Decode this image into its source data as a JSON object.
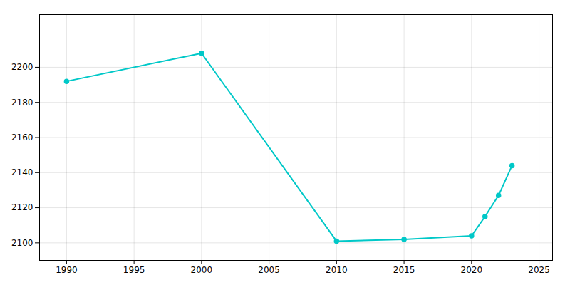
{
  "chart_data": {
    "type": "line",
    "x": [
      1990,
      2000,
      2010,
      2015,
      2020,
      2021,
      2022,
      2023
    ],
    "values": [
      2192,
      2208,
      2101,
      2102,
      2104,
      2115,
      2127,
      2144
    ],
    "color": "#00C8C8",
    "marker": "circle",
    "xlim": [
      1988,
      2026
    ],
    "ylim": [
      2090,
      2230
    ],
    "xticks": [
      1990,
      1995,
      2000,
      2005,
      2010,
      2015,
      2020,
      2025
    ],
    "yticks": [
      2100,
      2120,
      2140,
      2160,
      2180,
      2200
    ],
    "grid": true
  }
}
